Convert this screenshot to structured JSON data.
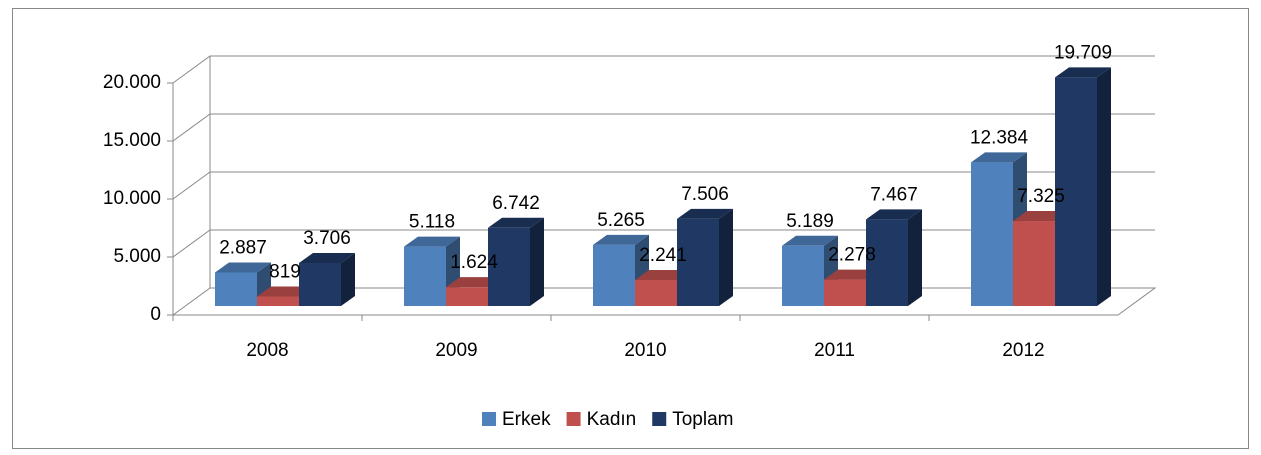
{
  "chart_data": {
    "type": "bar3d",
    "categories": [
      "2008",
      "2009",
      "2010",
      "2011",
      "2012"
    ],
    "series": [
      {
        "name": "Erkek",
        "color": "#4f81bd",
        "values": [
          2887,
          5118,
          5265,
          5189,
          12384
        ],
        "value_labels": [
          "2.887",
          "5.118",
          "5.265",
          "5.189",
          "12.384"
        ]
      },
      {
        "name": "Kadın",
        "color": "#c0504d",
        "values": [
          819,
          1624,
          2241,
          2278,
          7325
        ],
        "value_labels": [
          "819",
          "1.624",
          "2.241",
          "2.278",
          "7.325"
        ]
      },
      {
        "name": "Toplam",
        "color": "#1f3864",
        "values": [
          3706,
          6742,
          7506,
          7467,
          19709
        ],
        "value_labels": [
          "3.706",
          "6.742",
          "7.506",
          "7.467",
          "19.709"
        ]
      }
    ],
    "ylim": [
      0,
      20000
    ],
    "yticks": [
      0,
      {
        "value": 5000,
        "label": "5.000"
      },
      {
        "value": 10000,
        "label": "10.000"
      },
      {
        "value": 15000,
        "label": "15.000"
      },
      {
        "value": 20000,
        "label": "20.000"
      }
    ],
    "grid": true,
    "legend": "bottom"
  }
}
